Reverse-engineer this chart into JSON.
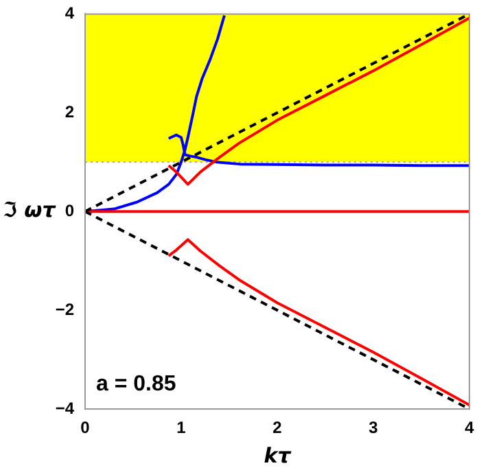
{
  "chart_data": {
    "type": "line",
    "xlabel": "kτ",
    "ylabel": "ℑ ωτ",
    "xlim": [
      0,
      4
    ],
    "ylim": [
      -4,
      4
    ],
    "xticks": [
      0,
      1,
      2,
      3,
      4
    ],
    "yticks": [
      -4,
      -2,
      0,
      2,
      4
    ],
    "marker": "none",
    "annotations": [
      "a = 0.85"
    ],
    "bands": [
      {
        "axis": "y",
        "from": 1,
        "to": 4,
        "color": "#ffff00"
      }
    ],
    "ref_lines": [
      {
        "axis": "y",
        "value": 1,
        "color": "#aaaaaa",
        "line_style": "dotted"
      }
    ],
    "series": [
      {
        "color": "#000000",
        "line_style": "dashed",
        "x": [
          0,
          4
        ],
        "values": [
          0,
          4
        ]
      },
      {
        "color": "#000000",
        "line_style": "dashed",
        "x": [
          0,
          4
        ],
        "values": [
          0,
          -4
        ]
      },
      {
        "color": "#ff0000",
        "line_style": "solid",
        "x": [
          0,
          4
        ],
        "values": [
          0,
          0
        ]
      },
      {
        "color": "#ff0000",
        "line_style": "solid",
        "x": [
          0.87,
          0.95,
          1.07,
          1.2,
          1.4,
          1.6,
          2,
          2.5,
          3,
          3.5,
          4
        ],
        "values": [
          0.93,
          0.8,
          0.55,
          0.8,
          1.1,
          1.38,
          1.85,
          2.35,
          2.85,
          3.38,
          3.92
        ]
      },
      {
        "color": "#ff0000",
        "line_style": "solid",
        "x": [
          0.87,
          0.95,
          1.07,
          1.2,
          1.4,
          1.6,
          2,
          2.5,
          3,
          3.5,
          4
        ],
        "values": [
          -0.9,
          -0.78,
          -0.57,
          -0.8,
          -1.1,
          -1.38,
          -1.85,
          -2.35,
          -2.85,
          -3.38,
          -3.92
        ]
      },
      {
        "color": "#0000ff",
        "line_style": "solid",
        "x": [
          0,
          0.3,
          0.54,
          0.75,
          0.87,
          0.95,
          1.0,
          1.04,
          1.07,
          1.12,
          1.16,
          1.22,
          1.3,
          1.38,
          1.45
        ],
        "values": [
          0,
          0.05,
          0.19,
          0.38,
          0.55,
          0.75,
          1.0,
          1.25,
          1.5,
          1.95,
          2.33,
          2.7,
          3.07,
          3.5,
          3.97
        ]
      },
      {
        "color": "#0000ff",
        "line_style": "solid",
        "x": [
          0.87,
          0.95,
          1.0,
          1.02,
          1.04,
          1.1,
          1.16,
          1.25,
          1.37,
          1.61,
          2,
          2.5,
          3,
          3.5,
          4
        ],
        "values": [
          1.48,
          1.55,
          1.5,
          1.35,
          1.15,
          1.12,
          1.1,
          1.05,
          1.0,
          0.96,
          0.95,
          0.94,
          0.94,
          0.93,
          0.93
        ]
      }
    ]
  }
}
